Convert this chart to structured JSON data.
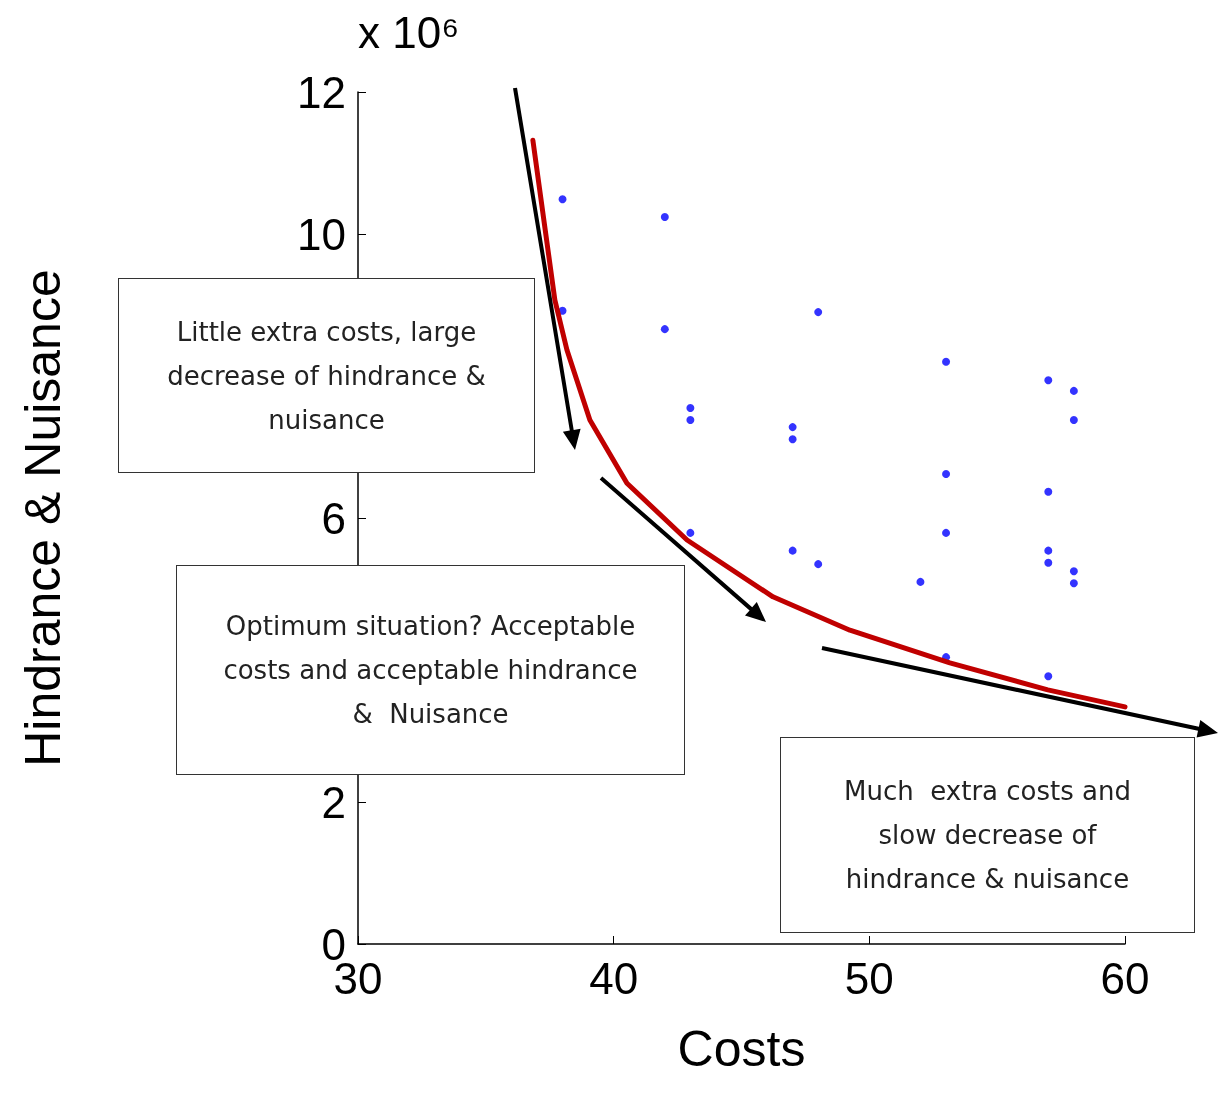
{
  "chart_data": {
    "type": "scatter",
    "xlabel": "Costs",
    "ylabel": "Hindrance & Nuisance",
    "xlim": [
      30,
      60
    ],
    "xticks": [
      30,
      40,
      50,
      60
    ],
    "ylim": [
      0,
      12
    ],
    "yticks": [
      0,
      2,
      6,
      10,
      12
    ],
    "grid": false,
    "annotations": [
      "x 10⁶",
      "Little extra costs, large decrease of hindrance & nuisance",
      "Optimum situation? Acceptable costs and acceptable hindrance &  Nuisance",
      "Much  extra costs and slow decrease of hindrance & nuisance"
    ],
    "series": [
      {
        "color": "#0000ff",
        "marker": "circle",
        "x": [
          38,
          38,
          42,
          42,
          43,
          43,
          43,
          48,
          47,
          47,
          47,
          48,
          52,
          53,
          53,
          53,
          53,
          57,
          57,
          57,
          57,
          57,
          58,
          58,
          58,
          58
        ],
        "values": [
          10.49,
          8.92,
          10.24,
          8.66,
          7.55,
          7.38,
          5.79,
          8.9,
          7.28,
          7.11,
          5.54,
          5.35,
          5.1,
          8.2,
          6.62,
          5.79,
          4.04,
          7.94,
          6.37,
          5.54,
          5.37,
          3.77,
          7.79,
          7.38,
          5.25,
          5.08
        ]
      },
      {
        "type": "line",
        "color": "#c00000",
        "marker": "none",
        "line_style": "solid",
        "x": [
          36.84,
          37.7,
          38.17,
          39.07,
          40.52,
          42.87,
          46.23,
          49.24,
          53.15,
          56.98,
          60
        ],
        "values": [
          11.32,
          9.07,
          8.37,
          7.38,
          6.49,
          5.69,
          4.89,
          4.42,
          3.96,
          3.58,
          3.34
        ]
      }
    ]
  }
}
